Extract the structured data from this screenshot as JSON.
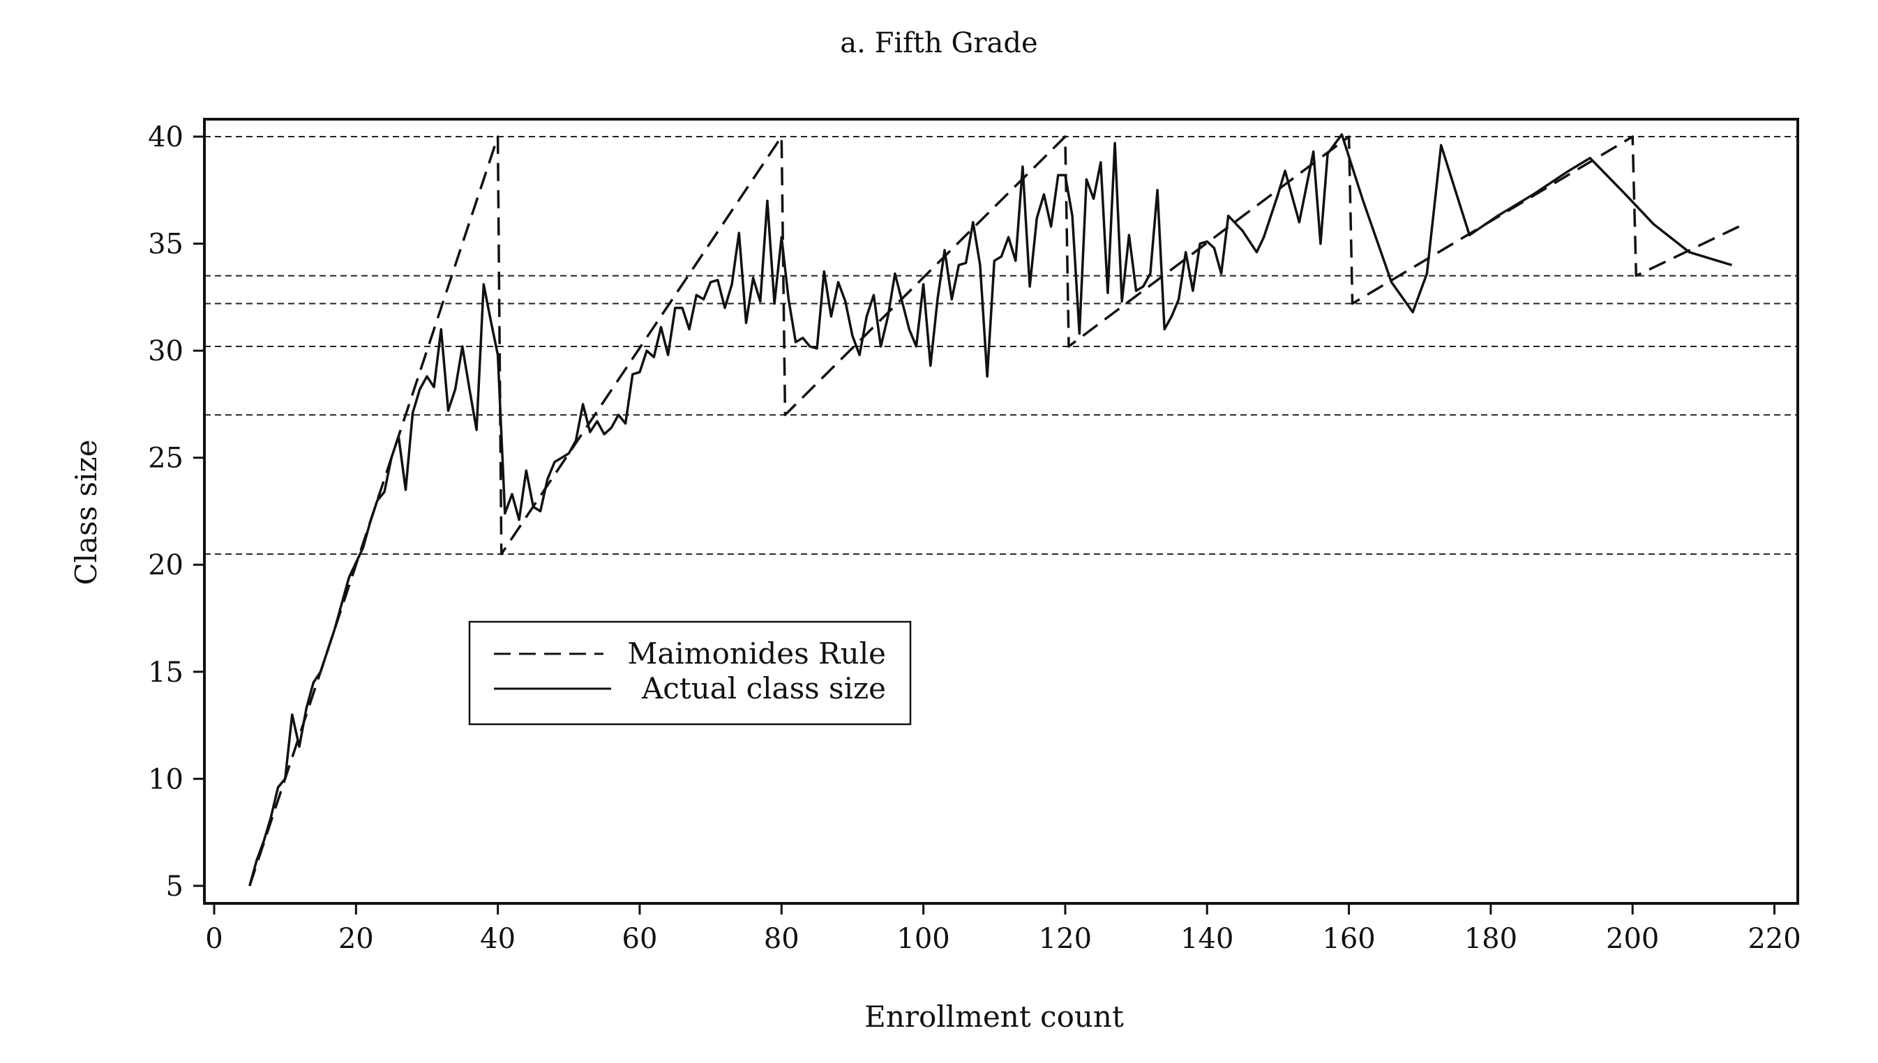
{
  "chart_data": {
    "type": "line",
    "title": "a. Fifth Grade",
    "xlabel": "Enrollment count",
    "ylabel": "Class size",
    "xlim": [
      0,
      220
    ],
    "ylim": [
      5,
      40
    ],
    "xticks": [
      0,
      20,
      40,
      60,
      80,
      100,
      120,
      140,
      160,
      180,
      200,
      220
    ],
    "yticks": [
      5,
      10,
      15,
      20,
      25,
      30,
      35,
      40
    ],
    "reference_lines_y": [
      40,
      33.5,
      32.2,
      30.2,
      27,
      20.5
    ],
    "legend": {
      "placement": "center-left",
      "entries": [
        "Maimonides Rule",
        "Actual class size"
      ]
    },
    "series": [
      {
        "name": "Maimonides Rule",
        "style": "dashed",
        "points": [
          [
            5,
            5
          ],
          [
            40,
            40
          ],
          [
            40.5,
            20.5
          ],
          [
            80,
            40
          ],
          [
            80.5,
            27
          ],
          [
            120,
            40
          ],
          [
            120.5,
            30.2
          ],
          [
            160,
            40
          ],
          [
            160.5,
            32.2
          ],
          [
            200,
            40
          ],
          [
            200.5,
            33.5
          ],
          [
            215,
            35.8
          ]
        ]
      },
      {
        "name": "Actual class size",
        "style": "solid",
        "points": [
          [
            5,
            5
          ],
          [
            6,
            6.2
          ],
          [
            7,
            7.1
          ],
          [
            8,
            8.2
          ],
          [
            9,
            9.6
          ],
          [
            10,
            10
          ],
          [
            11,
            13
          ],
          [
            12,
            11.5
          ],
          [
            13,
            13.3
          ],
          [
            14,
            14.5
          ],
          [
            15,
            15
          ],
          [
            16,
            16
          ],
          [
            17,
            17
          ],
          [
            18,
            18.2
          ],
          [
            19,
            19.4
          ],
          [
            20,
            20.1
          ],
          [
            21,
            20.8
          ],
          [
            22,
            22
          ],
          [
            23,
            23
          ],
          [
            24,
            23.4
          ],
          [
            25,
            25
          ],
          [
            26,
            26
          ],
          [
            27,
            23.5
          ],
          [
            28,
            27.1
          ],
          [
            29,
            28.2
          ],
          [
            30,
            28.8
          ],
          [
            31,
            28.3
          ],
          [
            32,
            31
          ],
          [
            33,
            27.2
          ],
          [
            34,
            28.2
          ],
          [
            35,
            30.2
          ],
          [
            36,
            28.2
          ],
          [
            37,
            26.3
          ],
          [
            38,
            33.1
          ],
          [
            39,
            31.4
          ],
          [
            40,
            29.8
          ],
          [
            41,
            22.4
          ],
          [
            42,
            23.3
          ],
          [
            43,
            22.1
          ],
          [
            44,
            24.4
          ],
          [
            45,
            22.7
          ],
          [
            46,
            22.5
          ],
          [
            47,
            24
          ],
          [
            48,
            24.8
          ],
          [
            49,
            25
          ],
          [
            50,
            25.2
          ],
          [
            51,
            25.8
          ],
          [
            52,
            27.5
          ],
          [
            53,
            26.2
          ],
          [
            54,
            26.7
          ],
          [
            55,
            26.1
          ],
          [
            56,
            26.4
          ],
          [
            57,
            27
          ],
          [
            58,
            26.6
          ],
          [
            59,
            28.9
          ],
          [
            60,
            29
          ],
          [
            61,
            30
          ],
          [
            62,
            29.7
          ],
          [
            63,
            31.1
          ],
          [
            64,
            29.8
          ],
          [
            65,
            32
          ],
          [
            66,
            32
          ],
          [
            67,
            31
          ],
          [
            68,
            32.6
          ],
          [
            69,
            32.4
          ],
          [
            70,
            33.2
          ],
          [
            71,
            33.3
          ],
          [
            72,
            32
          ],
          [
            73,
            33.1
          ],
          [
            74,
            35.5
          ],
          [
            75,
            31.3
          ],
          [
            76,
            33.4
          ],
          [
            77,
            32.3
          ],
          [
            78,
            37
          ],
          [
            79,
            32.2
          ],
          [
            80,
            35.3
          ],
          [
            81,
            32.4
          ],
          [
            82,
            30.4
          ],
          [
            83,
            30.6
          ],
          [
            84,
            30.2
          ],
          [
            85,
            30.1
          ],
          [
            86,
            33.7
          ],
          [
            87,
            31.6
          ],
          [
            88,
            33.2
          ],
          [
            89,
            32.3
          ],
          [
            90,
            30.7
          ],
          [
            91,
            29.8
          ],
          [
            92,
            31.6
          ],
          [
            93,
            32.6
          ],
          [
            94,
            30.2
          ],
          [
            95,
            31.6
          ],
          [
            96,
            33.6
          ],
          [
            97,
            32.3
          ],
          [
            98,
            31
          ],
          [
            99,
            30.2
          ],
          [
            100,
            33.1
          ],
          [
            101,
            29.3
          ],
          [
            102,
            32.4
          ],
          [
            103,
            34.7
          ],
          [
            104,
            32.4
          ],
          [
            105,
            34
          ],
          [
            106,
            34.1
          ],
          [
            107,
            36
          ],
          [
            108,
            34
          ],
          [
            109,
            28.8
          ],
          [
            110,
            34.2
          ],
          [
            111,
            34.4
          ],
          [
            112,
            35.3
          ],
          [
            113,
            34.2
          ],
          [
            114,
            38.6
          ],
          [
            115,
            33
          ],
          [
            116,
            36.2
          ],
          [
            117,
            37.3
          ],
          [
            118,
            35.8
          ],
          [
            119,
            38.2
          ],
          [
            120,
            38.2
          ],
          [
            121,
            36.3
          ],
          [
            122,
            30.8
          ],
          [
            123,
            38
          ],
          [
            124,
            37.1
          ],
          [
            125,
            38.8
          ],
          [
            126,
            32.7
          ],
          [
            127,
            39.7
          ],
          [
            128,
            32.3
          ],
          [
            129,
            35.4
          ],
          [
            130,
            32.8
          ],
          [
            131,
            33
          ],
          [
            132,
            33.6
          ],
          [
            133,
            37.5
          ],
          [
            134,
            31
          ],
          [
            135,
            31.6
          ],
          [
            136,
            32.4
          ],
          [
            137,
            34.6
          ],
          [
            138,
            32.8
          ],
          [
            139,
            35
          ],
          [
            140,
            35.1
          ],
          [
            141,
            34.8
          ],
          [
            142,
            33.6
          ],
          [
            143,
            36.3
          ],
          [
            145,
            35.6
          ],
          [
            147,
            34.6
          ],
          [
            148,
            35.3
          ],
          [
            150,
            37.3
          ],
          [
            151,
            38.4
          ],
          [
            153,
            36
          ],
          [
            155,
            39.3
          ],
          [
            156,
            35
          ],
          [
            157,
            39.2
          ],
          [
            159,
            40.1
          ],
          [
            162,
            37
          ],
          [
            166,
            33.2
          ],
          [
            169,
            31.8
          ],
          [
            171,
            33.6
          ],
          [
            173,
            39.6
          ],
          [
            177,
            35.4
          ],
          [
            181,
            36.3
          ],
          [
            186,
            37.3
          ],
          [
            191,
            38.4
          ],
          [
            194,
            39
          ],
          [
            199,
            37.3
          ],
          [
            203,
            35.9
          ],
          [
            208,
            34.6
          ],
          [
            214,
            34
          ]
        ]
      }
    ]
  }
}
